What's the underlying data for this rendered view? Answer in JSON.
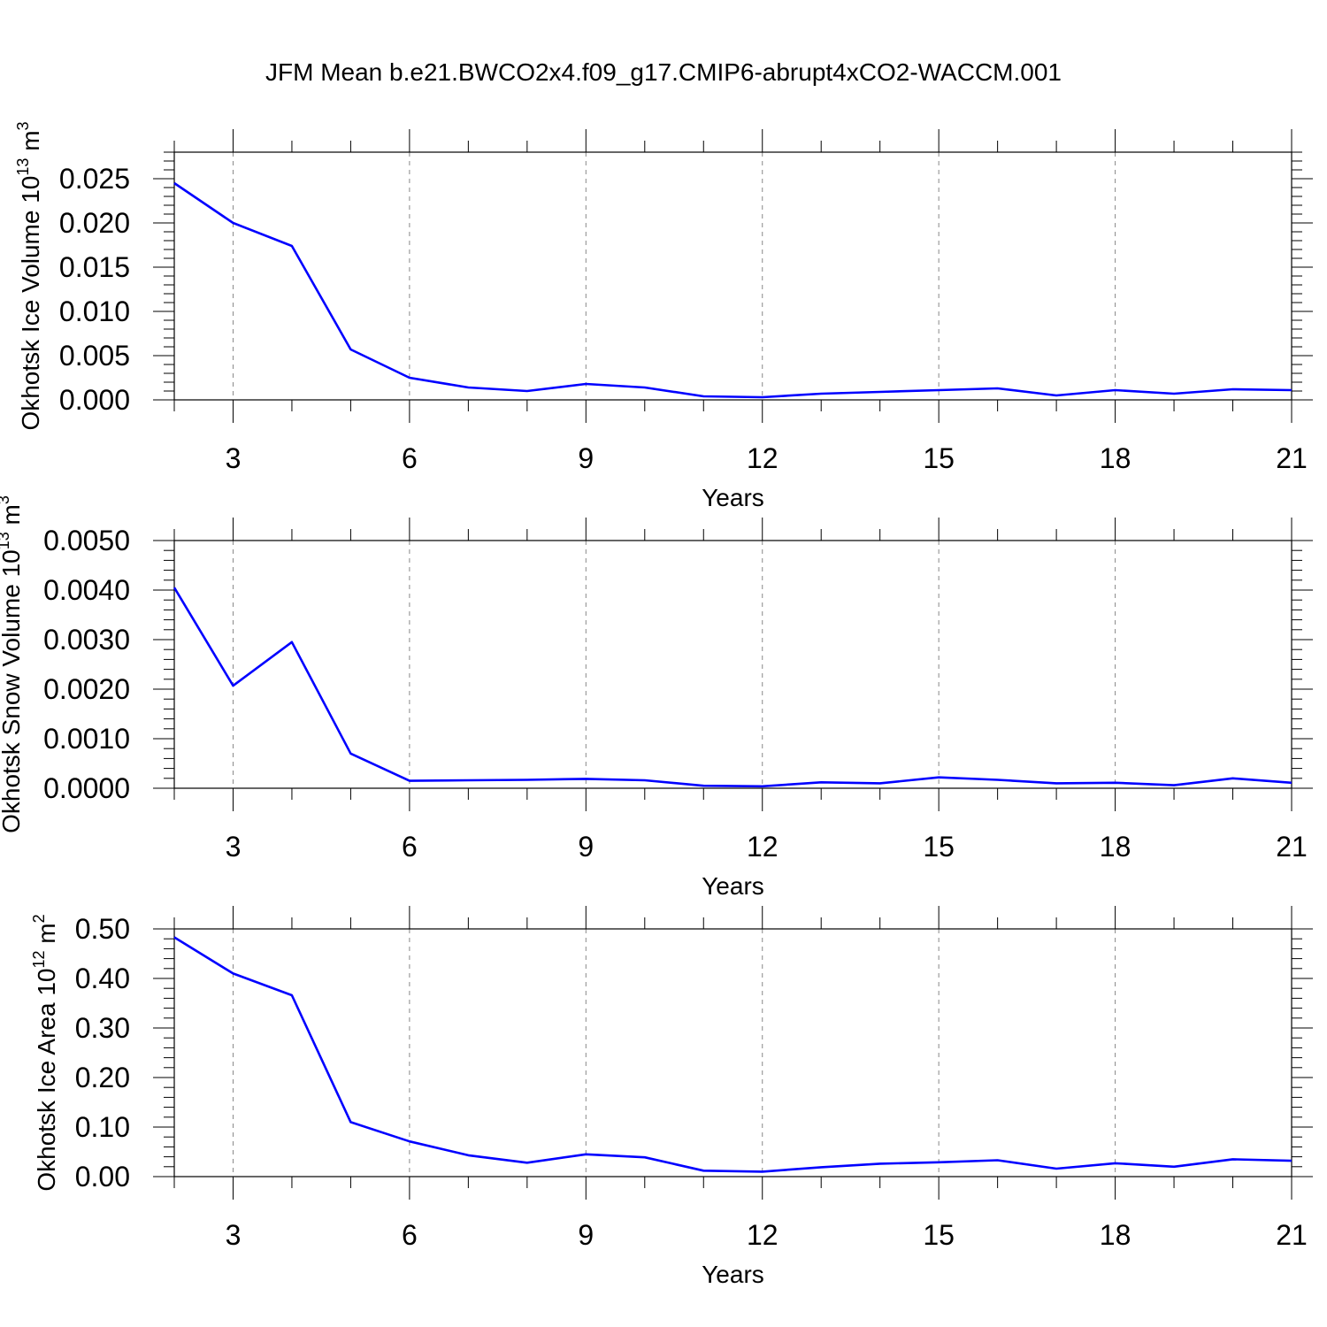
{
  "title": "JFM Mean b.e21.BWCO2x4.f09_g17.CMIP6-abrupt4xCO2-WACCM.001",
  "line_color": "#0000ff",
  "chart_data": [
    {
      "type": "line",
      "ylabel": "Okhotsk Ice Volume",
      "unit_base": "10",
      "unit_exp": "13",
      "unit_suffix": "m",
      "unit_suffix_exp": "3",
      "xlabel": "Years",
      "xlim": [
        2,
        21
      ],
      "ylim": [
        0,
        0.028
      ],
      "xticks": [
        3,
        6,
        9,
        12,
        15,
        18,
        21
      ],
      "xtick_labels": [
        "3",
        "6",
        "9",
        "12",
        "15",
        "18",
        "21"
      ],
      "yticks": [
        0,
        0.005,
        0.01,
        0.015,
        0.02,
        0.025
      ],
      "ytick_labels": [
        "0.000",
        "0.005",
        "0.010",
        "0.015",
        "0.020",
        "0.025"
      ],
      "x": [
        2,
        3,
        4,
        5,
        6,
        7,
        8,
        9,
        10,
        11,
        12,
        13,
        14,
        15,
        16,
        17,
        18,
        19,
        20,
        21
      ],
      "values": [
        0.0245,
        0.02,
        0.0174,
        0.0057,
        0.0025,
        0.0014,
        0.001,
        0.0018,
        0.0014,
        0.0004,
        0.0003,
        0.0007,
        0.0009,
        0.0011,
        0.0013,
        0.0005,
        0.0011,
        0.0007,
        0.0012,
        0.0011
      ]
    },
    {
      "type": "line",
      "ylabel": "Okhotsk Snow Volume",
      "unit_base": "10",
      "unit_exp": "13",
      "unit_suffix": "m",
      "unit_suffix_exp": "3",
      "xlabel": "Years",
      "xlim": [
        2,
        21
      ],
      "ylim": [
        0,
        0.005
      ],
      "xticks": [
        3,
        6,
        9,
        12,
        15,
        18,
        21
      ],
      "xtick_labels": [
        "3",
        "6",
        "9",
        "12",
        "15",
        "18",
        "21"
      ],
      "yticks": [
        0,
        0.001,
        0.002,
        0.003,
        0.004,
        0.005
      ],
      "ytick_labels": [
        "0.0000",
        "0.0010",
        "0.0020",
        "0.0030",
        "0.0040",
        "0.0050"
      ],
      "x": [
        2,
        3,
        4,
        5,
        6,
        7,
        8,
        9,
        10,
        11,
        12,
        13,
        14,
        15,
        16,
        17,
        18,
        19,
        20,
        21
      ],
      "values": [
        0.00405,
        0.00207,
        0.00295,
        0.0007,
        0.00015,
        0.00016,
        0.00017,
        0.00019,
        0.00016,
        5e-05,
        4e-05,
        0.00012,
        0.0001,
        0.00022,
        0.00017,
        0.0001,
        0.00011,
        6e-05,
        0.0002,
        0.00011
      ]
    },
    {
      "type": "line",
      "ylabel": "Okhotsk Ice Area",
      "unit_base": "10",
      "unit_exp": "12",
      "unit_suffix": "m",
      "unit_suffix_exp": "2",
      "xlabel": "Years",
      "xlim": [
        2,
        21
      ],
      "ylim": [
        0,
        0.5
      ],
      "xticks": [
        3,
        6,
        9,
        12,
        15,
        18,
        21
      ],
      "xtick_labels": [
        "3",
        "6",
        "9",
        "12",
        "15",
        "18",
        "21"
      ],
      "yticks": [
        0,
        0.1,
        0.2,
        0.3,
        0.4,
        0.5
      ],
      "ytick_labels": [
        "0.00",
        "0.10",
        "0.20",
        "0.30",
        "0.40",
        "0.50"
      ],
      "x": [
        2,
        3,
        4,
        5,
        6,
        7,
        8,
        9,
        10,
        11,
        12,
        13,
        14,
        15,
        16,
        17,
        18,
        19,
        20,
        21
      ],
      "values": [
        0.483,
        0.41,
        0.366,
        0.11,
        0.071,
        0.043,
        0.028,
        0.045,
        0.039,
        0.012,
        0.01,
        0.019,
        0.026,
        0.029,
        0.033,
        0.016,
        0.027,
        0.02,
        0.035,
        0.032
      ]
    }
  ]
}
